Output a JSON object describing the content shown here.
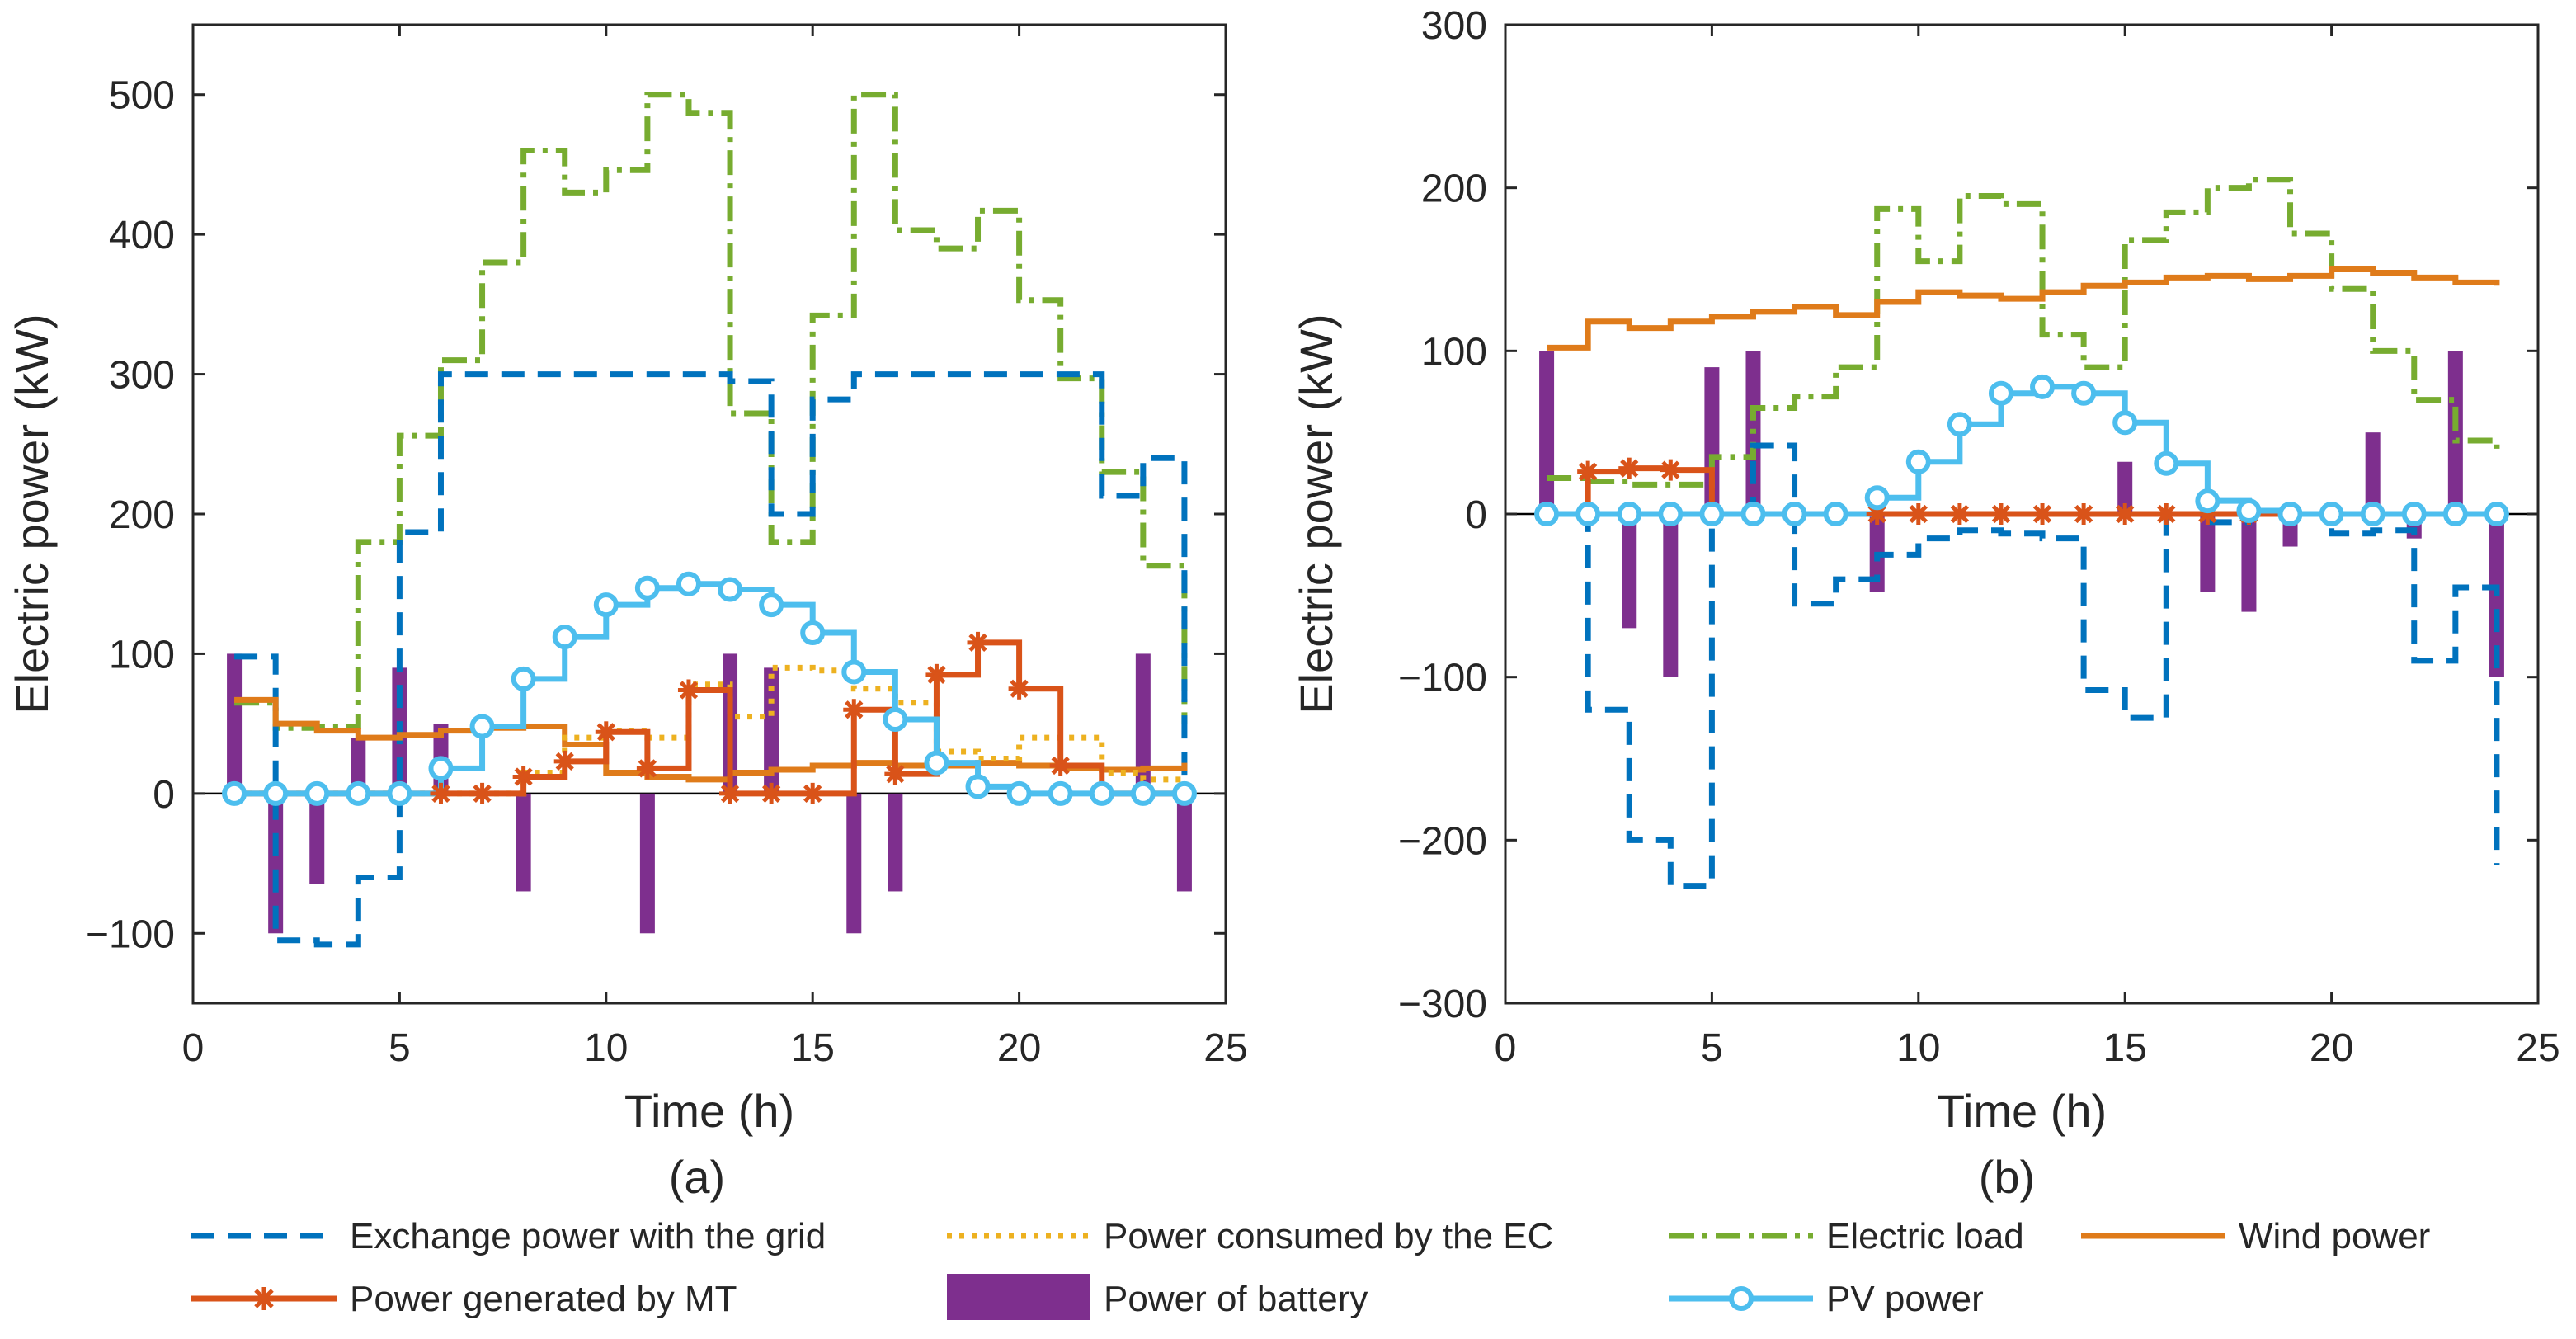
{
  "colors": {
    "grid": "#0072BD",
    "mt": "#D95319",
    "ec": "#EDB120",
    "battery": "#7E2F8E",
    "load": "#77AC30",
    "pv": "#4DBEEE",
    "wind": "#DF7B1A",
    "axis": "#262626"
  },
  "legend": {
    "grid": "Exchange power with the grid",
    "ec": "Power consumed by the EC",
    "load": "Electric load",
    "wind": "Wind power",
    "mt": "Power generated by MT",
    "battery": "Power of battery",
    "pv": "PV power"
  },
  "chart_data": [
    {
      "type": "line",
      "panel": "(a)",
      "xlabel": "Time (h)",
      "ylabel": "Electric power (kW)",
      "xlim": [
        0,
        25
      ],
      "ylim": [
        -150,
        550
      ],
      "xticks": [
        0,
        5,
        10,
        15,
        20,
        25
      ],
      "yticks": [
        -100,
        0,
        100,
        200,
        300,
        400,
        500
      ],
      "x": [
        1,
        2,
        3,
        4,
        5,
        6,
        7,
        8,
        9,
        10,
        11,
        12,
        13,
        14,
        15,
        16,
        17,
        18,
        19,
        20,
        21,
        22,
        23,
        24
      ],
      "series": {
        "grid": [
          98,
          -105,
          -108,
          -60,
          187,
          300,
          300,
          300,
          300,
          300,
          300,
          300,
          295,
          200,
          282,
          300,
          300,
          300,
          300,
          300,
          300,
          213,
          240,
          0
        ],
        "ec": [
          0,
          0,
          0,
          0,
          0,
          0,
          0,
          15,
          40,
          45,
          40,
          78,
          55,
          90,
          88,
          75,
          65,
          30,
          25,
          40,
          40,
          15,
          10,
          0
        ],
        "load": [
          65,
          47,
          48,
          180,
          256,
          310,
          380,
          460,
          430,
          446,
          500,
          487,
          272,
          180,
          342,
          500,
          403,
          390,
          417,
          353,
          297,
          230,
          163,
          50
        ],
        "wind": [
          67,
          50,
          45,
          40,
          42,
          45,
          47,
          48,
          35,
          15,
          12,
          10,
          15,
          17,
          20,
          22,
          20,
          20,
          22,
          20,
          18,
          17,
          18,
          22
        ],
        "mt": [
          0,
          0,
          0,
          0,
          0,
          0,
          0,
          12,
          23,
          44,
          18,
          74,
          0,
          0,
          0,
          60,
          14,
          85,
          108,
          75,
          20,
          0,
          0,
          0
        ],
        "pv": [
          0,
          0,
          0,
          0,
          0,
          18,
          48,
          82,
          112,
          135,
          147,
          150,
          146,
          135,
          115,
          87,
          53,
          22,
          5,
          0,
          0,
          0,
          0,
          0
        ],
        "battery": [
          100,
          -100,
          -65,
          40,
          90,
          50,
          0,
          -70,
          0,
          0,
          -100,
          0,
          100,
          90,
          0,
          -100,
          -70,
          0,
          0,
          0,
          0,
          0,
          100,
          -70
        ]
      }
    },
    {
      "type": "line",
      "panel": "(b)",
      "xlabel": "Time (h)",
      "ylabel": "Electric power (kW)",
      "xlim": [
        0,
        25
      ],
      "ylim": [
        -300,
        300
      ],
      "xticks": [
        0,
        5,
        10,
        15,
        20,
        25
      ],
      "yticks": [
        -300,
        -200,
        -100,
        0,
        100,
        200,
        300
      ],
      "x": [
        1,
        2,
        3,
        4,
        5,
        6,
        7,
        8,
        9,
        10,
        11,
        12,
        13,
        14,
        15,
        16,
        17,
        18,
        19,
        20,
        21,
        22,
        23,
        24
      ],
      "series": {
        "grid": [
          0,
          -120,
          -200,
          -228,
          0,
          42,
          -55,
          -40,
          -25,
          -15,
          -10,
          -12,
          -15,
          -108,
          -125,
          0,
          -5,
          0,
          0,
          -12,
          -10,
          -90,
          -45,
          -215
        ],
        "ec": [
          0,
          0,
          0,
          0,
          0,
          0,
          0,
          0,
          0,
          0,
          0,
          0,
          0,
          0,
          0,
          0,
          0,
          0,
          0,
          0,
          0,
          0,
          0,
          0
        ],
        "load": [
          22,
          20,
          18,
          18,
          35,
          65,
          72,
          90,
          187,
          155,
          195,
          190,
          110,
          90,
          168,
          185,
          200,
          205,
          172,
          138,
          100,
          70,
          45,
          40
        ],
        "wind": [
          102,
          118,
          114,
          118,
          121,
          124,
          127,
          122,
          130,
          136,
          134,
          132,
          136,
          140,
          142,
          145,
          146,
          144,
          146,
          150,
          148,
          145,
          142,
          140
        ],
        "mt": [
          0,
          26,
          28,
          27,
          0,
          0,
          0,
          0,
          0,
          0,
          0,
          0,
          0,
          0,
          0,
          0,
          0,
          0,
          0,
          0,
          0,
          0,
          0,
          0
        ],
        "pv": [
          0,
          0,
          0,
          0,
          0,
          0,
          0,
          0,
          10,
          32,
          55,
          74,
          78,
          74,
          56,
          31,
          8,
          2,
          0,
          0,
          0,
          0,
          0,
          0
        ],
        "battery": [
          100,
          0,
          -70,
          -100,
          90,
          100,
          0,
          0,
          -48,
          0,
          0,
          0,
          0,
          0,
          32,
          0,
          -48,
          -60,
          -20,
          0,
          50,
          -15,
          100,
          -100
        ]
      }
    }
  ]
}
